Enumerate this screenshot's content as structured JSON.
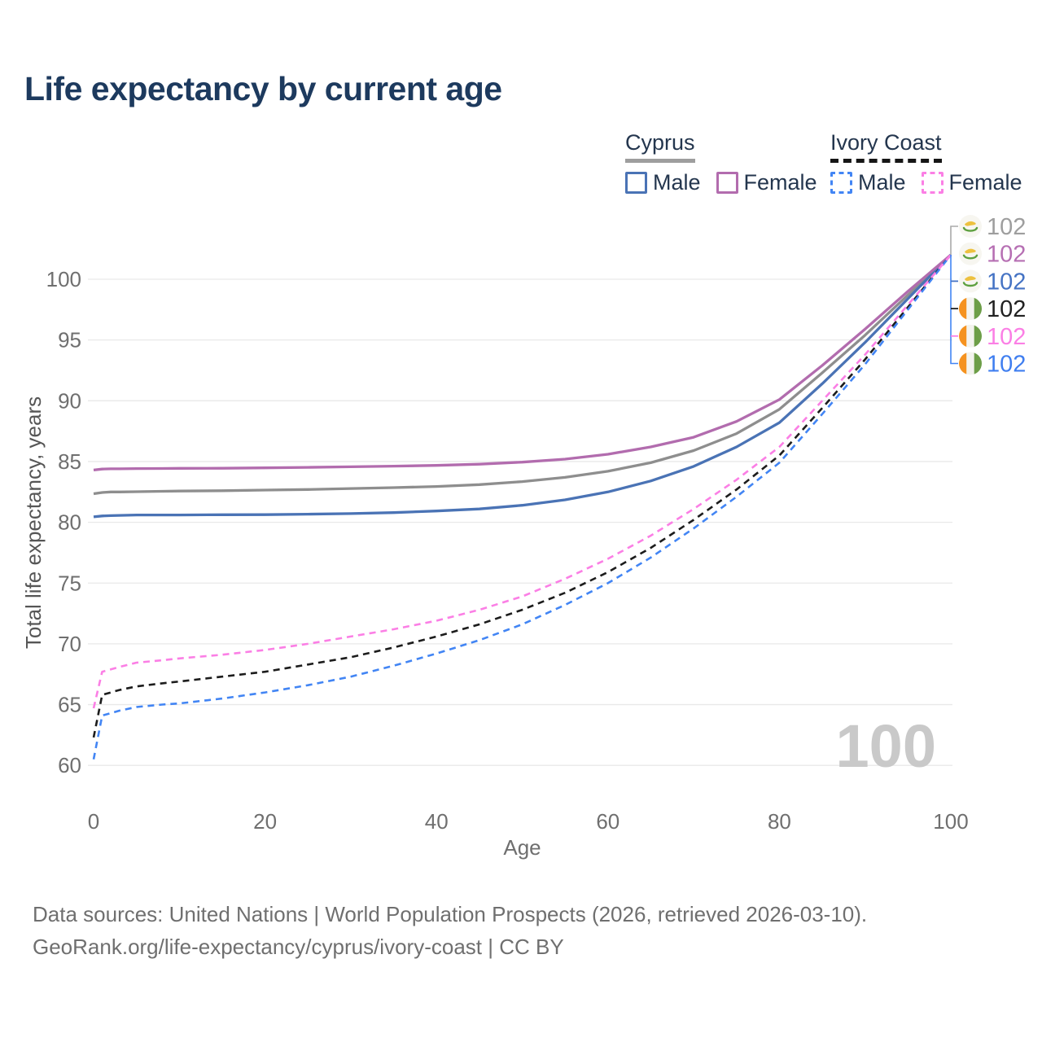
{
  "title": "Life expectancy by current age",
  "legend": {
    "groups": [
      {
        "name": "Cyprus",
        "line_style": "solid",
        "items": [
          {
            "label": "Male",
            "color": "#4a73b5"
          },
          {
            "label": "Female",
            "color": "#b26cae"
          }
        ]
      },
      {
        "name": "Ivory Coast",
        "line_style": "dashed",
        "items": [
          {
            "label": "Male",
            "color": "#4285f4"
          },
          {
            "label": "Female",
            "color": "#fb7fe5"
          }
        ]
      }
    ]
  },
  "chart_data": {
    "type": "line",
    "title": "Life expectancy by current age",
    "xlabel": "Age",
    "ylabel": "Total life expectancy, years",
    "xlim": [
      0,
      100
    ],
    "ylim": [
      60,
      102.5
    ],
    "x_ticks": [
      0,
      20,
      40,
      60,
      80,
      100
    ],
    "y_ticks": [
      60,
      65,
      70,
      75,
      80,
      85,
      90,
      95,
      100
    ],
    "grid": true,
    "legend_position": "top-right",
    "watermark": "100",
    "x": [
      0,
      1,
      2,
      3,
      5,
      8,
      10,
      15,
      20,
      25,
      30,
      35,
      40,
      45,
      50,
      55,
      60,
      65,
      70,
      75,
      80,
      85,
      90,
      95,
      100
    ],
    "series": [
      {
        "id": "cyprus-total",
        "name": "Cyprus (both sexes)",
        "country": "Cyprus",
        "flag": "cyprus",
        "color": "#8e8e8e",
        "dashed": false,
        "end_label": "102",
        "label_color": "#9e9e9e",
        "values": [
          82.35,
          82.45,
          82.5,
          82.5,
          82.52,
          82.55,
          82.57,
          82.6,
          82.65,
          82.7,
          82.78,
          82.85,
          82.95,
          83.1,
          83.35,
          83.7,
          84.2,
          84.9,
          85.9,
          87.3,
          89.3,
          92.3,
          95.4,
          98.7,
          102
        ]
      },
      {
        "id": "cyprus-female",
        "name": "Cyprus Female",
        "country": "Cyprus",
        "flag": "cyprus",
        "color": "#b26cae",
        "dashed": false,
        "end_label": "102",
        "label_color": "#b66fb3",
        "values": [
          84.3,
          84.38,
          84.4,
          84.4,
          84.42,
          84.43,
          84.44,
          84.45,
          84.48,
          84.52,
          84.57,
          84.62,
          84.68,
          84.78,
          84.95,
          85.2,
          85.6,
          86.2,
          87.0,
          88.3,
          90.1,
          92.9,
          95.9,
          99.0,
          102
        ]
      },
      {
        "id": "cyprus-male",
        "name": "Cyprus Male",
        "country": "Cyprus",
        "flag": "cyprus",
        "color": "#4a73b5",
        "dashed": false,
        "end_label": "102",
        "label_color": "#4573c4",
        "values": [
          80.45,
          80.52,
          80.55,
          80.57,
          80.6,
          80.6,
          80.6,
          80.62,
          80.63,
          80.67,
          80.72,
          80.8,
          80.93,
          81.1,
          81.4,
          81.85,
          82.5,
          83.4,
          84.6,
          86.2,
          88.2,
          91.4,
          94.8,
          98.4,
          102
        ]
      },
      {
        "id": "ivory-coast-total",
        "name": "Ivory Coast (both sexes)",
        "country": "Ivory Coast",
        "flag": "ivory-coast",
        "color": "#1c1c1c",
        "dashed": true,
        "end_label": "102",
        "label_color": "#212121",
        "values": [
          62.3,
          65.8,
          66.0,
          66.2,
          66.5,
          66.75,
          66.9,
          67.3,
          67.7,
          68.3,
          68.9,
          69.7,
          70.6,
          71.6,
          72.8,
          74.2,
          75.9,
          77.9,
          80.2,
          82.7,
          85.5,
          89.4,
          93.4,
          97.7,
          102
        ]
      },
      {
        "id": "ivory-coast-female",
        "name": "Ivory Coast Female",
        "country": "Ivory Coast",
        "flag": "ivory-coast",
        "color": "#fb7fe5",
        "dashed": true,
        "end_label": "102",
        "label_color": "#fb7fe5",
        "values": [
          64.7,
          67.7,
          67.9,
          68.1,
          68.45,
          68.65,
          68.8,
          69.1,
          69.5,
          70.0,
          70.6,
          71.2,
          71.9,
          72.8,
          73.9,
          75.35,
          77.0,
          78.9,
          81.1,
          83.5,
          86.2,
          90.0,
          93.8,
          97.9,
          102
        ]
      },
      {
        "id": "ivory-coast-male",
        "name": "Ivory Coast Male",
        "country": "Ivory Coast",
        "flag": "ivory-coast",
        "color": "#4285f4",
        "dashed": true,
        "end_label": "102",
        "label_color": "#3f7ef0",
        "values": [
          60.5,
          64.1,
          64.3,
          64.5,
          64.8,
          65.0,
          65.1,
          65.5,
          66.0,
          66.6,
          67.3,
          68.2,
          69.2,
          70.3,
          71.6,
          73.2,
          75.0,
          77.1,
          79.5,
          82.1,
          84.9,
          88.9,
          93.0,
          97.5,
          102
        ]
      }
    ]
  },
  "footer": {
    "line1": "Data sources: United Nations | World Population Prospects (2026, retrieved 2026-03-10).",
    "line2": "GeoRank.org/life-expectancy/cyprus/ivory-coast | CC BY"
  }
}
